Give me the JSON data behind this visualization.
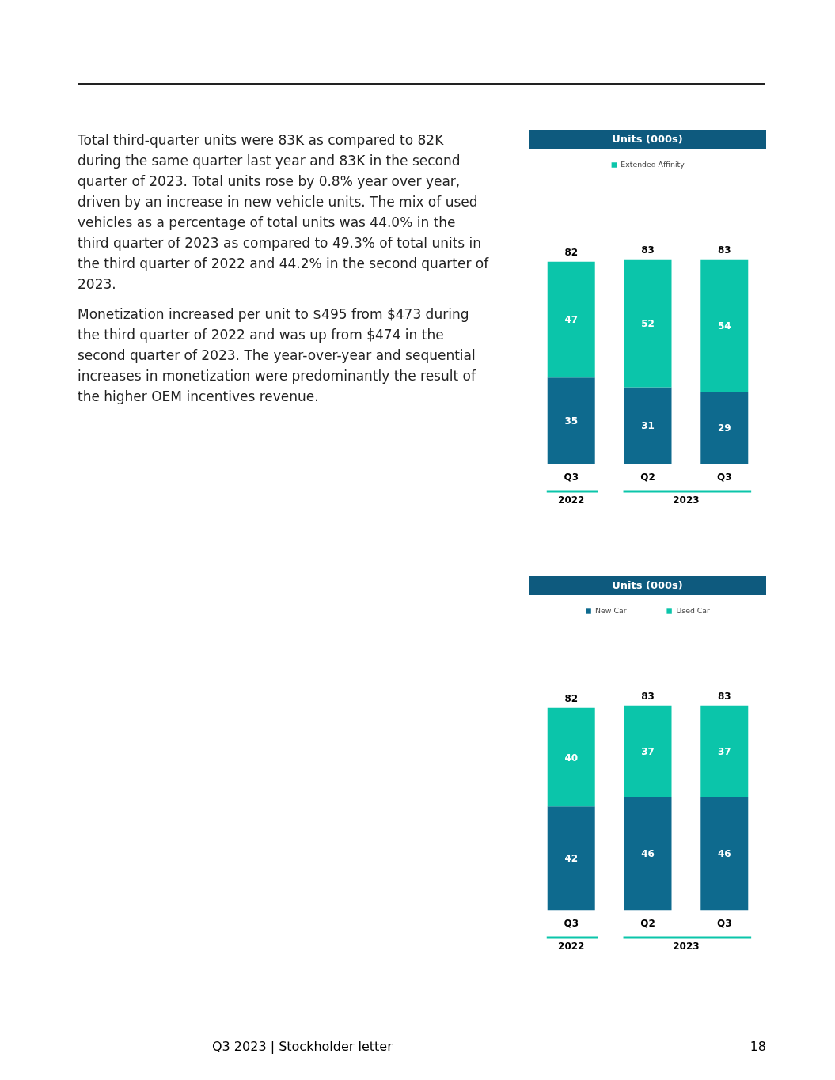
{
  "chart_data": [
    {
      "type": "other",
      "annotations": [
        "Total third-quarter units were 83K as compared to 82K during the same quarter last year and 83K in the second quarter of 2023. Total units rose by 0.8% year over year, driven by an increase in new vehicle units. The mix of used vehicles as a percentage of total units was 44.0% in the third quarter of 2023 as compared to 49.3% of total units in the third quarter of 2022 and 44.2% in the second quarter of 2023.",
        "Monetization increased per unit to $495 from $473 during the third quarter of 2022 and was up from $474 in the second quarter of 2023. The year-over-year and sequential increases in monetization were predominantly the result of the higher OEM incentives revenue."
      ]
    },
    {
      "type": "bar",
      "title": "Units (000s)",
      "categories": [
        "Q3",
        "Q2",
        "Q3"
      ],
      "stacked": true,
      "data_labels": true,
      "totals": [
        "82",
        "83",
        "83"
      ],
      "legend": "top",
      "annotations": [
        "2022",
        "2023"
      ],
      "series": [
        {
          "color": "#0e6a8e",
          "values": [
            35,
            31,
            29
          ]
        },
        {
          "name": "Extended Affinity",
          "color": "#0bc5aa",
          "values": [
            47,
            52,
            54
          ]
        }
      ]
    },
    {
      "type": "bar",
      "title": "Units (000s)",
      "categories": [
        "Q3",
        "Q2",
        "Q3"
      ],
      "stacked": true,
      "data_labels": true,
      "totals": [
        "82",
        "83",
        "83"
      ],
      "legend": "top",
      "annotations": [
        "2022",
        "2023"
      ],
      "series": [
        {
          "name": "New Car",
          "color": "#0e6a8e",
          "values": [
            42,
            46,
            46
          ]
        },
        {
          "name": "Used Car",
          "color": "#0bc5aa",
          "values": [
            40,
            37,
            37
          ]
        }
      ]
    },
    {
      "type": "other",
      "annotations": [
        "Q3 2023 | Stockholder letter",
        "18"
      ]
    }
  ]
}
